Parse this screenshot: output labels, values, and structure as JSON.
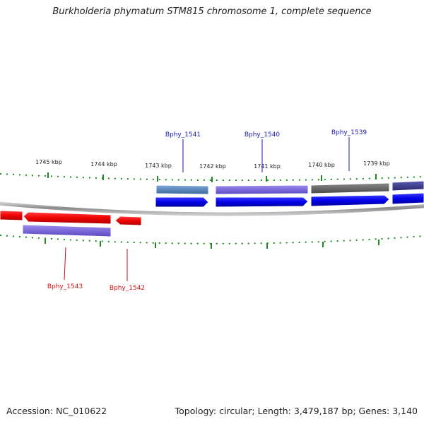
{
  "title": "Burkholderia phymatum STM815 chromosome 1, complete sequence",
  "footer": {
    "accession": "Accession: NC_010622",
    "topology": "Topology: circular; Length: 3,479,187 bp; Genes: 3,140"
  },
  "scale_labels": [
    "1745 kbp",
    "1744 kbp",
    "1743 kbp",
    "1742 kbp",
    "1741 kbp",
    "1740 kbp",
    "1739 kbp"
  ],
  "gene_labels": {
    "top": [
      "Bphy_1541",
      "Bphy_1540",
      "Bphy_1539"
    ],
    "bottom": [
      "Bphy_1543",
      "Bphy_1542"
    ]
  },
  "colors": {
    "forward_strand": "#0a0ae8",
    "reverse_strand": "#ee0a0a",
    "top_label": "#1a1aaa",
    "bottom_label": "#cc1111",
    "tick": "#1e8a1e",
    "backbone": "#8a8a8a"
  }
}
